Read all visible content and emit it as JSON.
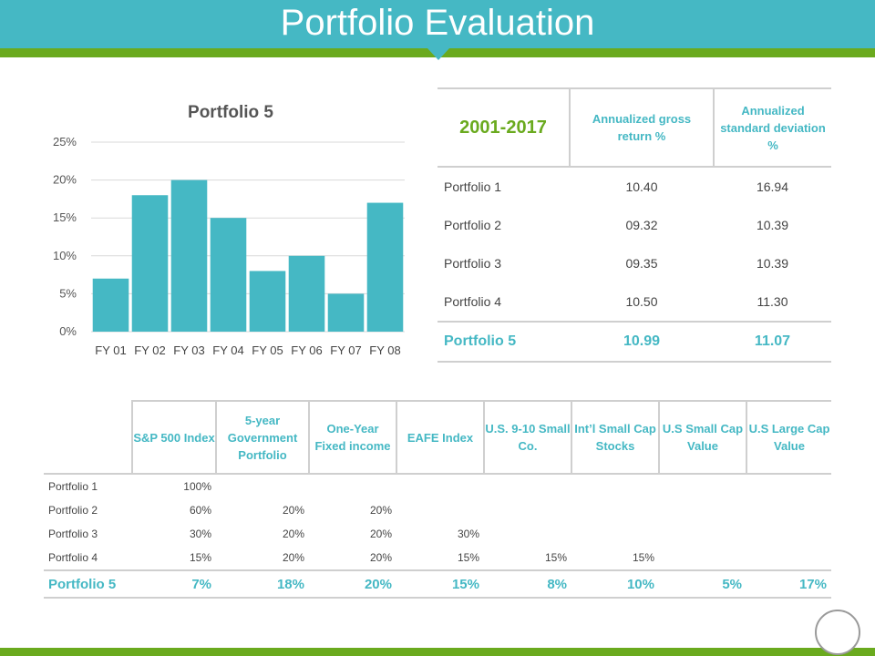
{
  "header": {
    "title": "Portfolio Evaluation"
  },
  "colors": {
    "teal": "#45b8c4",
    "green": "#6aaa1e",
    "grid": "#d9d9d9"
  },
  "chart_data": {
    "type": "bar",
    "title": "Portfolio 5",
    "categories": [
      "FY 01",
      "FY 02",
      "FY 03",
      "FY 04",
      "FY 05",
      "FY 06",
      "FY 07",
      "FY 08"
    ],
    "values": [
      7,
      18,
      20,
      15,
      8,
      10,
      5,
      17
    ],
    "ylim": [
      0,
      25
    ],
    "yticks": [
      0,
      5,
      10,
      15,
      20,
      25
    ],
    "ytick_labels": [
      "0%",
      "5%",
      "10%",
      "15%",
      "20%",
      "25%"
    ],
    "grid": true,
    "color": "#45b8c4",
    "xlabel": "",
    "ylabel": ""
  },
  "returns_table": {
    "period": "2001-2017",
    "col1": "Annualized gross return %",
    "col2": "Annualized standard deviation %",
    "rows": [
      {
        "name": "Portfolio 1",
        "ret": "10.40",
        "sd": "16.94"
      },
      {
        "name": "Portfolio 2",
        "ret": "09.32",
        "sd": "10.39"
      },
      {
        "name": "Portfolio 3",
        "ret": "09.35",
        "sd": "10.39"
      },
      {
        "name": "Portfolio 4",
        "ret": "10.50",
        "sd": "11.30"
      }
    ],
    "highlight": {
      "name": "Portfolio 5",
      "ret": "10.99",
      "sd": "11.07"
    }
  },
  "allocation_table": {
    "headers": [
      "S&P 500 Index",
      "5-year Government Portfolio",
      "One-Year Fixed income",
      "EAFE Index",
      "U.S. 9-10 Small Co.",
      "Int’l Small Cap Stocks",
      "U.S Small Cap Value",
      "U.S Large Cap Value"
    ],
    "rows": [
      {
        "name": "Portfolio 1",
        "values": [
          "100%",
          "",
          "",
          "",
          "",
          "",
          "",
          ""
        ]
      },
      {
        "name": "Portfolio 2",
        "values": [
          "60%",
          "20%",
          "20%",
          "",
          "",
          "",
          "",
          ""
        ]
      },
      {
        "name": "Portfolio 3",
        "values": [
          "30%",
          "20%",
          "20%",
          "30%",
          "",
          "",
          "",
          ""
        ]
      },
      {
        "name": "Portfolio 4",
        "values": [
          "15%",
          "20%",
          "20%",
          "15%",
          "15%",
          "15%",
          "",
          ""
        ]
      }
    ],
    "highlight": {
      "name": "Portfolio 5",
      "values": [
        "7%",
        "18%",
        "20%",
        "15%",
        "8%",
        "10%",
        "5%",
        "17%"
      ]
    }
  }
}
